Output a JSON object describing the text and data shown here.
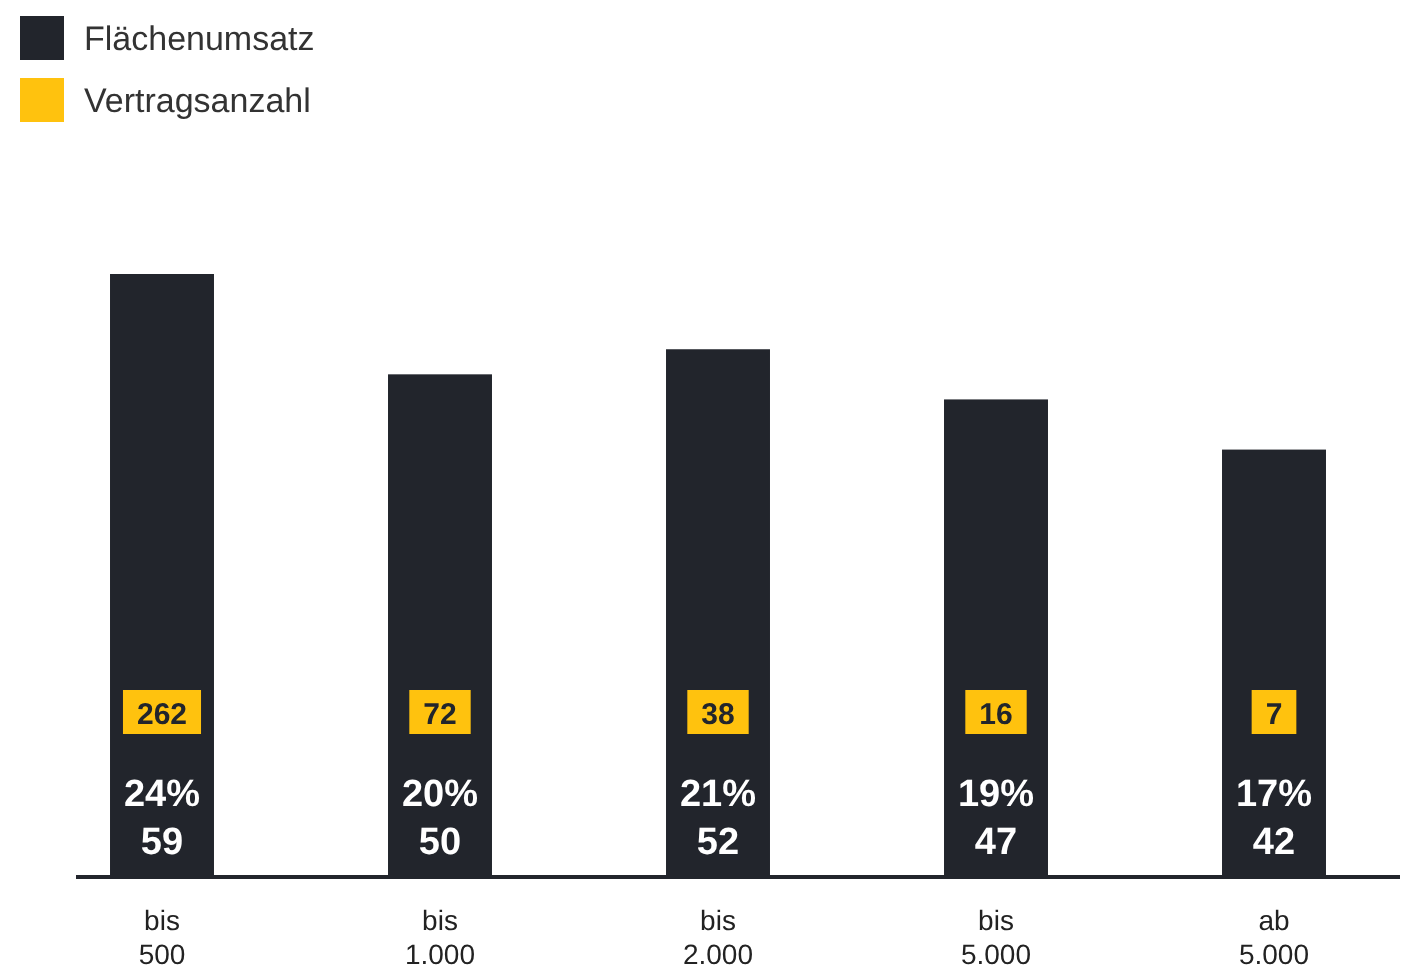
{
  "chart_data": {
    "type": "bar",
    "categories": [
      "bis 500",
      "bis 1.000",
      "bis 2.000",
      "bis 5.000",
      "ab 5.000"
    ],
    "series": [
      {
        "name": "Flächenumsatz",
        "color": "#22252c",
        "values": [
          24,
          20,
          21,
          19,
          17
        ],
        "value_labels": [
          "24%\n59",
          "20%\n50",
          "21%\n52",
          "19%\n47",
          "17%\n42"
        ]
      },
      {
        "name": "Vertragsanzahl",
        "color": "#ffc20e",
        "values": [
          null,
          null,
          null,
          null,
          null
        ],
        "value_labels": [
          "262",
          "72",
          "38",
          "16",
          "7"
        ]
      }
    ],
    "legend": "top left"
  }
}
